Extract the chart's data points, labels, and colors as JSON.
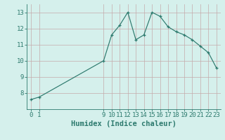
{
  "x": [
    0,
    1,
    9,
    10,
    11,
    12,
    13,
    14,
    15,
    16,
    17,
    18,
    19,
    20,
    21,
    22,
    23
  ],
  "y": [
    7.6,
    7.75,
    10.0,
    11.6,
    12.2,
    13.0,
    11.3,
    11.6,
    13.0,
    12.75,
    12.1,
    11.8,
    11.6,
    11.3,
    10.9,
    10.5,
    9.55
  ],
  "line_color": "#2d7a6e",
  "marker": "+",
  "bg_color": "#d5f0ec",
  "grid_color_h": "#c4aaaa",
  "grid_color_v": "#c4aaaa",
  "xlabel": "Humidex (Indice chaleur)",
  "xlim": [
    -0.5,
    23.5
  ],
  "ylim": [
    7.0,
    13.5
  ],
  "yticks": [
    8,
    9,
    10,
    11,
    12,
    13
  ],
  "xticks": [
    0,
    1,
    9,
    10,
    11,
    12,
    13,
    14,
    15,
    16,
    17,
    18,
    19,
    20,
    21,
    22,
    23
  ],
  "label_color": "#2d7a6e",
  "tick_color": "#2d7a6e",
  "xlabel_fontsize": 7.5,
  "tick_fontsize": 6.5,
  "linewidth": 0.85,
  "markersize": 3.5,
  "markeredgewidth": 0.9
}
